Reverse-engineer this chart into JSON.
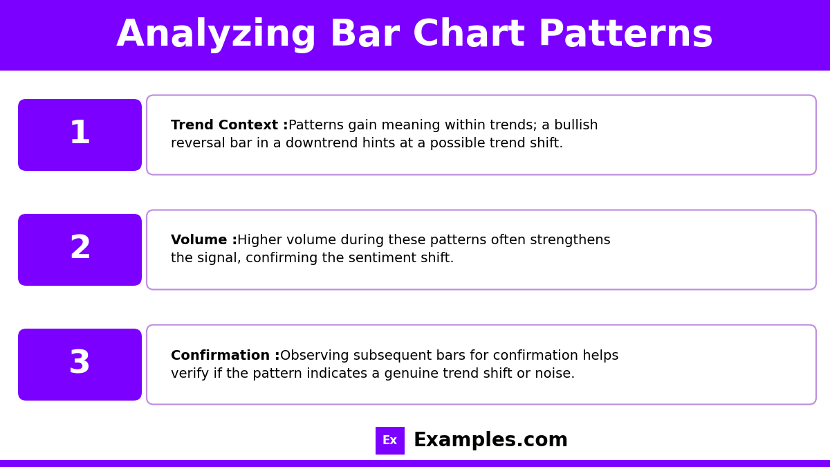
{
  "title": "Analyzing Bar Chart Patterns",
  "title_bg_color": "#7B00FF",
  "title_text_color": "#FFFFFF",
  "bg_color": "#FFFFFF",
  "border_color": "#7B00FF",
  "number_bg_color": "#7B00FF",
  "number_text_color": "#FFFFFF",
  "box_border_color": "#C090E0",
  "items": [
    {
      "number": "1",
      "bold_label": "Trend Context :",
      "line1": "Patterns gain meaning within trends; a bullish",
      "line2": "reversal bar in a downtrend hints at a possible trend shift."
    },
    {
      "number": "2",
      "bold_label": "Volume :",
      "line1": "Higher volume during these patterns often strengthens",
      "line2": "the signal, confirming the sentiment shift."
    },
    {
      "number": "3",
      "bold_label": "Confirmation :",
      "line1": "Observing subsequent bars for confirmation helps",
      "line2": "verify if the pattern indicates a genuine trend shift or noise."
    }
  ],
  "footer_ex_bg": "#7B00FF",
  "footer_ex_text": "Ex",
  "footer_text": "Examples.com",
  "title_fontsize": 38,
  "number_fontsize": 34,
  "label_fontsize": 14,
  "text_fontsize": 14
}
